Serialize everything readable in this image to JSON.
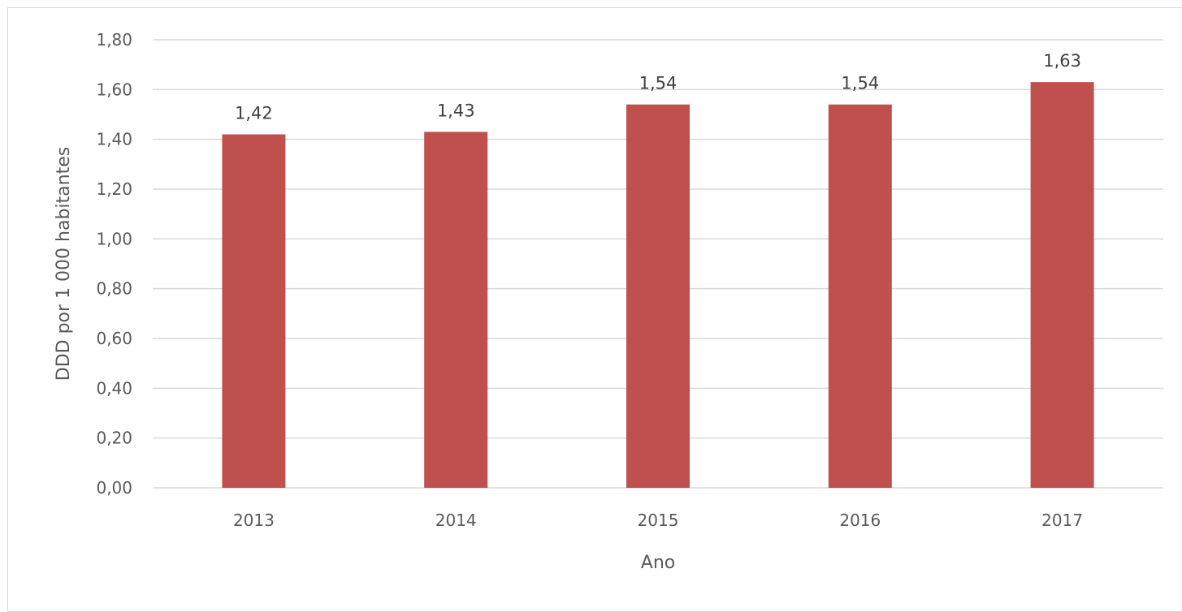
{
  "chart_data": {
    "type": "bar",
    "categories": [
      "2013",
      "2014",
      "2015",
      "2016",
      "2017"
    ],
    "values": [
      1.42,
      1.43,
      1.54,
      1.54,
      1.63
    ],
    "value_labels": [
      "1,42",
      "1,43",
      "1,54",
      "1,54",
      "1,63"
    ],
    "title": "",
    "xlabel": "Ano",
    "ylabel": "DDD por 1 000 habitantes",
    "ylim": [
      0,
      1.8
    ],
    "yticks": [
      0,
      0.2,
      0.4,
      0.6,
      0.8,
      1.0,
      1.2,
      1.4,
      1.6,
      1.8
    ],
    "ytick_labels": [
      "0,00",
      "0,20",
      "0,40",
      "0,60",
      "0,80",
      "1,00",
      "1,20",
      "1,40",
      "1,60",
      "1,80"
    ],
    "grid": true,
    "legend": "none",
    "colors": {
      "bar": "#c0504d",
      "grid": "#d9d9d9",
      "axis_text": "#595959",
      "data_label_text": "#404040"
    }
  }
}
